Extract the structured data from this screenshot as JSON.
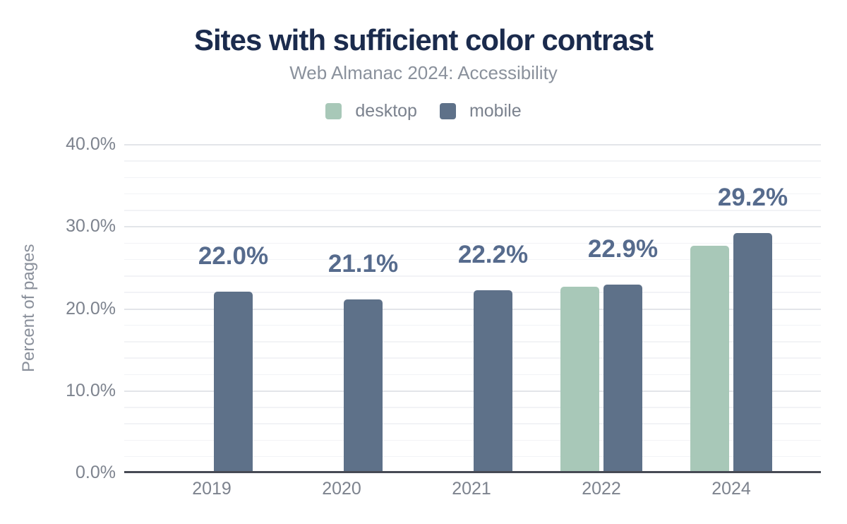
{
  "chart_data": {
    "type": "bar",
    "title": "Sites with sufficient color contrast",
    "subtitle": "Web Almanac 2024: Accessibility",
    "ylabel": "Percent of pages",
    "xlabel": "",
    "categories": [
      "2019",
      "2020",
      "2021",
      "2022",
      "2024"
    ],
    "series": [
      {
        "name": "desktop",
        "color": "#a8c8b8",
        "values": [
          null,
          null,
          null,
          22.6,
          27.6
        ]
      },
      {
        "name": "mobile",
        "color": "#5e7189",
        "values": [
          22.0,
          21.1,
          22.2,
          22.9,
          29.2
        ]
      }
    ],
    "data_labels": {
      "series": "mobile",
      "texts": [
        "22.0%",
        "21.1%",
        "22.2%",
        "22.9%",
        "29.2%"
      ]
    },
    "ylim": [
      0,
      40
    ],
    "yticks": [
      {
        "value": 0,
        "label": "0.0%"
      },
      {
        "value": 10,
        "label": "10.0%"
      },
      {
        "value": 20,
        "label": "20.0%"
      },
      {
        "value": 30,
        "label": "30.0%"
      },
      {
        "value": 40,
        "label": "40.0%"
      }
    ],
    "grid": {
      "on": true,
      "major_every": 10,
      "minor_every": 2
    },
    "legend_position": "top",
    "colors": {
      "background": "#ffffff",
      "title": "#1b2b4d",
      "subtitle": "#8a919c",
      "axis_text": "#7d838e",
      "data_label": "#566b8d",
      "axis_line": "#464a54",
      "grid_major": "#e3e5e9",
      "grid_minor": "#f2f3f6"
    }
  }
}
